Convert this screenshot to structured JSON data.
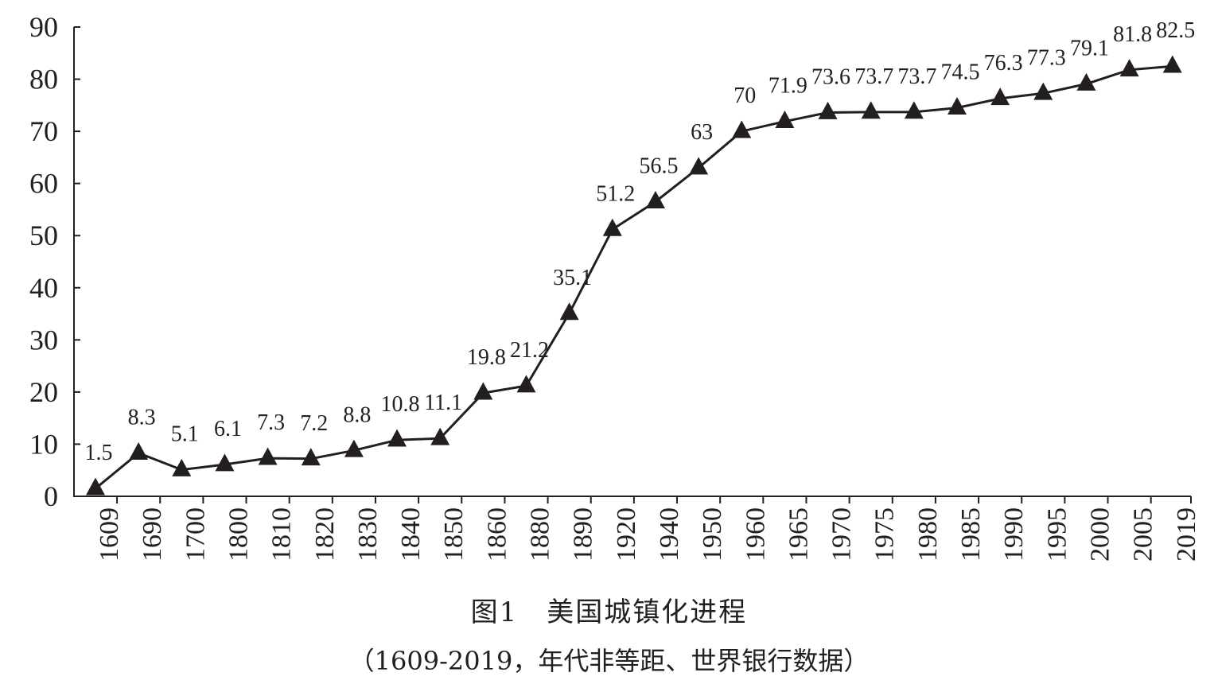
{
  "chart_data": {
    "type": "line",
    "categories": [
      "1609",
      "1690",
      "1700",
      "1800",
      "1810",
      "1820",
      "1830",
      "1840",
      "1850",
      "1860",
      "1880",
      "1890",
      "1920",
      "1940",
      "1950",
      "1960",
      "1965",
      "1970",
      "1975",
      "1980",
      "1985",
      "1990",
      "1995",
      "2000",
      "2005",
      "2019"
    ],
    "values": [
      1.5,
      8.3,
      5.1,
      6.1,
      7.3,
      7.2,
      8.8,
      10.8,
      11.1,
      19.8,
      21.2,
      35.1,
      51.2,
      56.5,
      63,
      70,
      71.9,
      73.6,
      73.7,
      73.7,
      74.5,
      76.3,
      77.3,
      79.1,
      81.8,
      82.5
    ],
    "data_labels": [
      "1.5",
      "8.3",
      "5.1",
      "6.1",
      "7.3",
      "7.2",
      "8.8",
      "10.8",
      "11.1",
      "19.8",
      "21.2",
      "35.1",
      "51.2",
      "56.5",
      "63",
      "70",
      "71.9",
      "73.6",
      "73.7",
      "73.7",
      "74.5",
      "76.3",
      "77.3",
      "79.1",
      "81.8",
      "82.5"
    ],
    "ylim": [
      0,
      90
    ],
    "yticks": [
      "0",
      "10",
      "20",
      "30",
      "40",
      "50",
      "60",
      "70",
      "80",
      "90"
    ],
    "marker": "triangle",
    "line_color": "#231f20",
    "grid": false,
    "title": "图1　美国城镇化进程",
    "subtitle": "（1609-2019，年代非等距、世界银行数据）"
  }
}
